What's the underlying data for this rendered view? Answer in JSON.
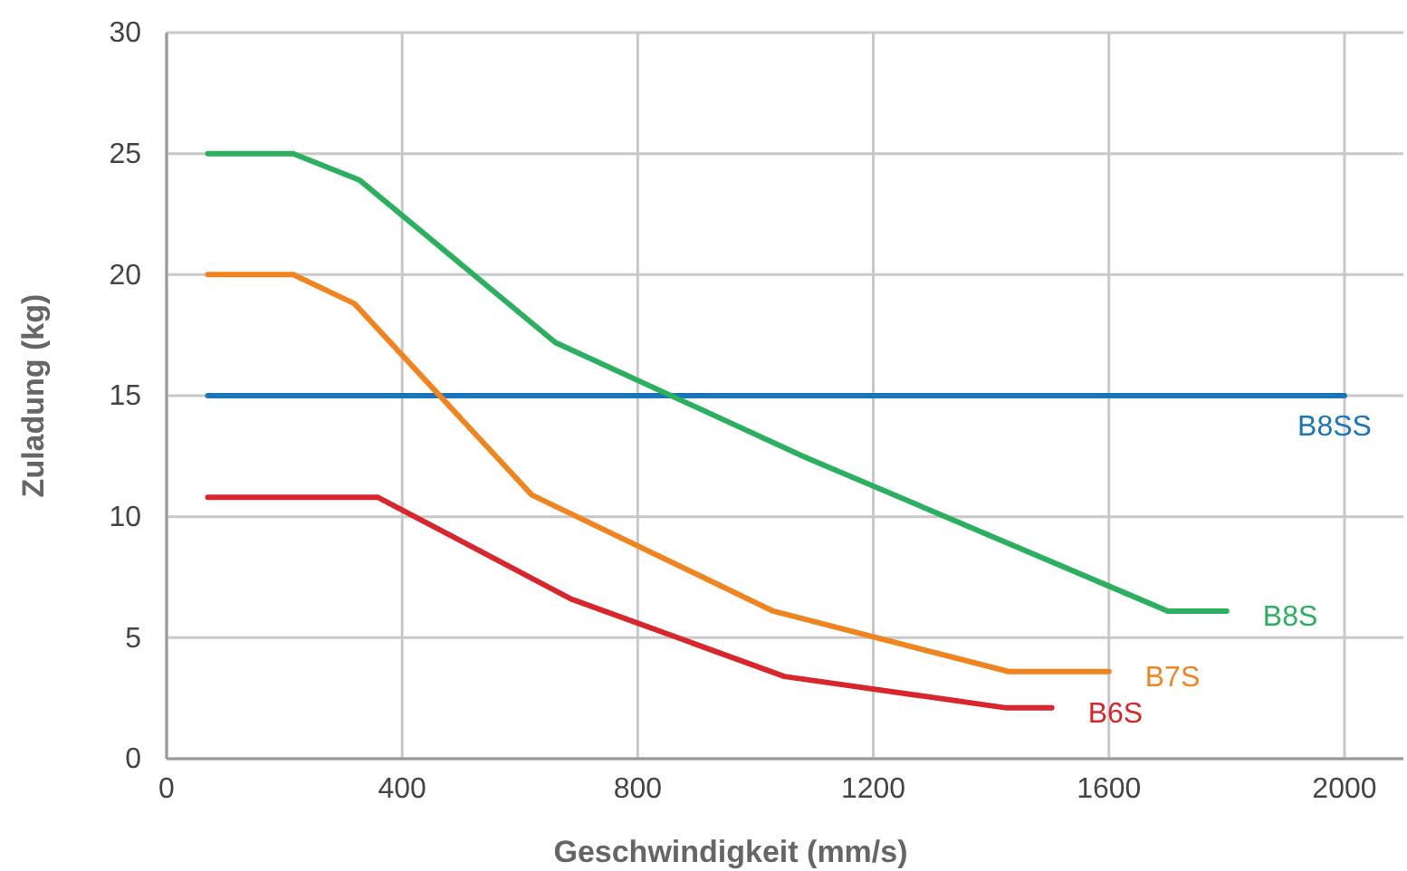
{
  "chart_data": {
    "type": "line",
    "xlabel": "Geschwindigkeit (mm/s)",
    "ylabel": "Zuladung (kg)",
    "xlim": [
      0,
      2100
    ],
    "ylim": [
      0,
      30
    ],
    "xticks": [
      0,
      400,
      800,
      1200,
      1600,
      2000
    ],
    "yticks": [
      0,
      5,
      10,
      15,
      20,
      25,
      30
    ],
    "grid": true,
    "legend": false,
    "marker": "none",
    "line_style": "solid",
    "series": [
      {
        "name": "B8SS",
        "color": "#1a75bb",
        "x": [
          70,
          2000
        ],
        "values": [
          15,
          15
        ]
      },
      {
        "name": "B8S",
        "color": "#2bb060",
        "x": [
          70,
          215,
          328,
          660,
          1080,
          1700,
          1800
        ],
        "values": [
          25,
          25,
          23.9,
          17.2,
          12.5,
          6.1,
          6.1
        ]
      },
      {
        "name": "B7S",
        "color": "#f0841f",
        "x": [
          70,
          215,
          319,
          620,
          1030,
          1430,
          1600
        ],
        "values": [
          20,
          20,
          18.8,
          10.9,
          6.1,
          3.6,
          3.6
        ]
      },
      {
        "name": "B6S",
        "color": "#d9262c",
        "x": [
          70,
          359,
          687,
          1049,
          1426,
          1503
        ],
        "values": [
          10.8,
          10.8,
          6.6,
          3.4,
          2.1,
          2.1
        ]
      }
    ]
  }
}
